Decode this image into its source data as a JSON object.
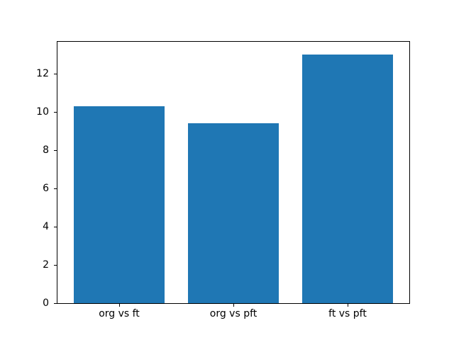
{
  "figure": {
    "background": "#ffffff",
    "spine_color": "#000000",
    "tick_label_color": "#000000"
  },
  "chart_data": {
    "type": "bar",
    "categories": [
      "org vs ft",
      "org vs pft",
      "ft vs pft"
    ],
    "values": [
      10.3,
      9.4,
      13.0
    ],
    "title": "",
    "xlabel": "",
    "ylabel": "",
    "ylim": [
      0,
      13.65
    ],
    "yticks": [
      0,
      2,
      4,
      6,
      8,
      10,
      12
    ],
    "xlim": [
      -0.54,
      2.54
    ],
    "bar_positions": [
      0,
      1,
      2
    ],
    "bar_width": 0.8,
    "bar_color": "#1f77b4",
    "grid": false,
    "legend_position": "none"
  }
}
